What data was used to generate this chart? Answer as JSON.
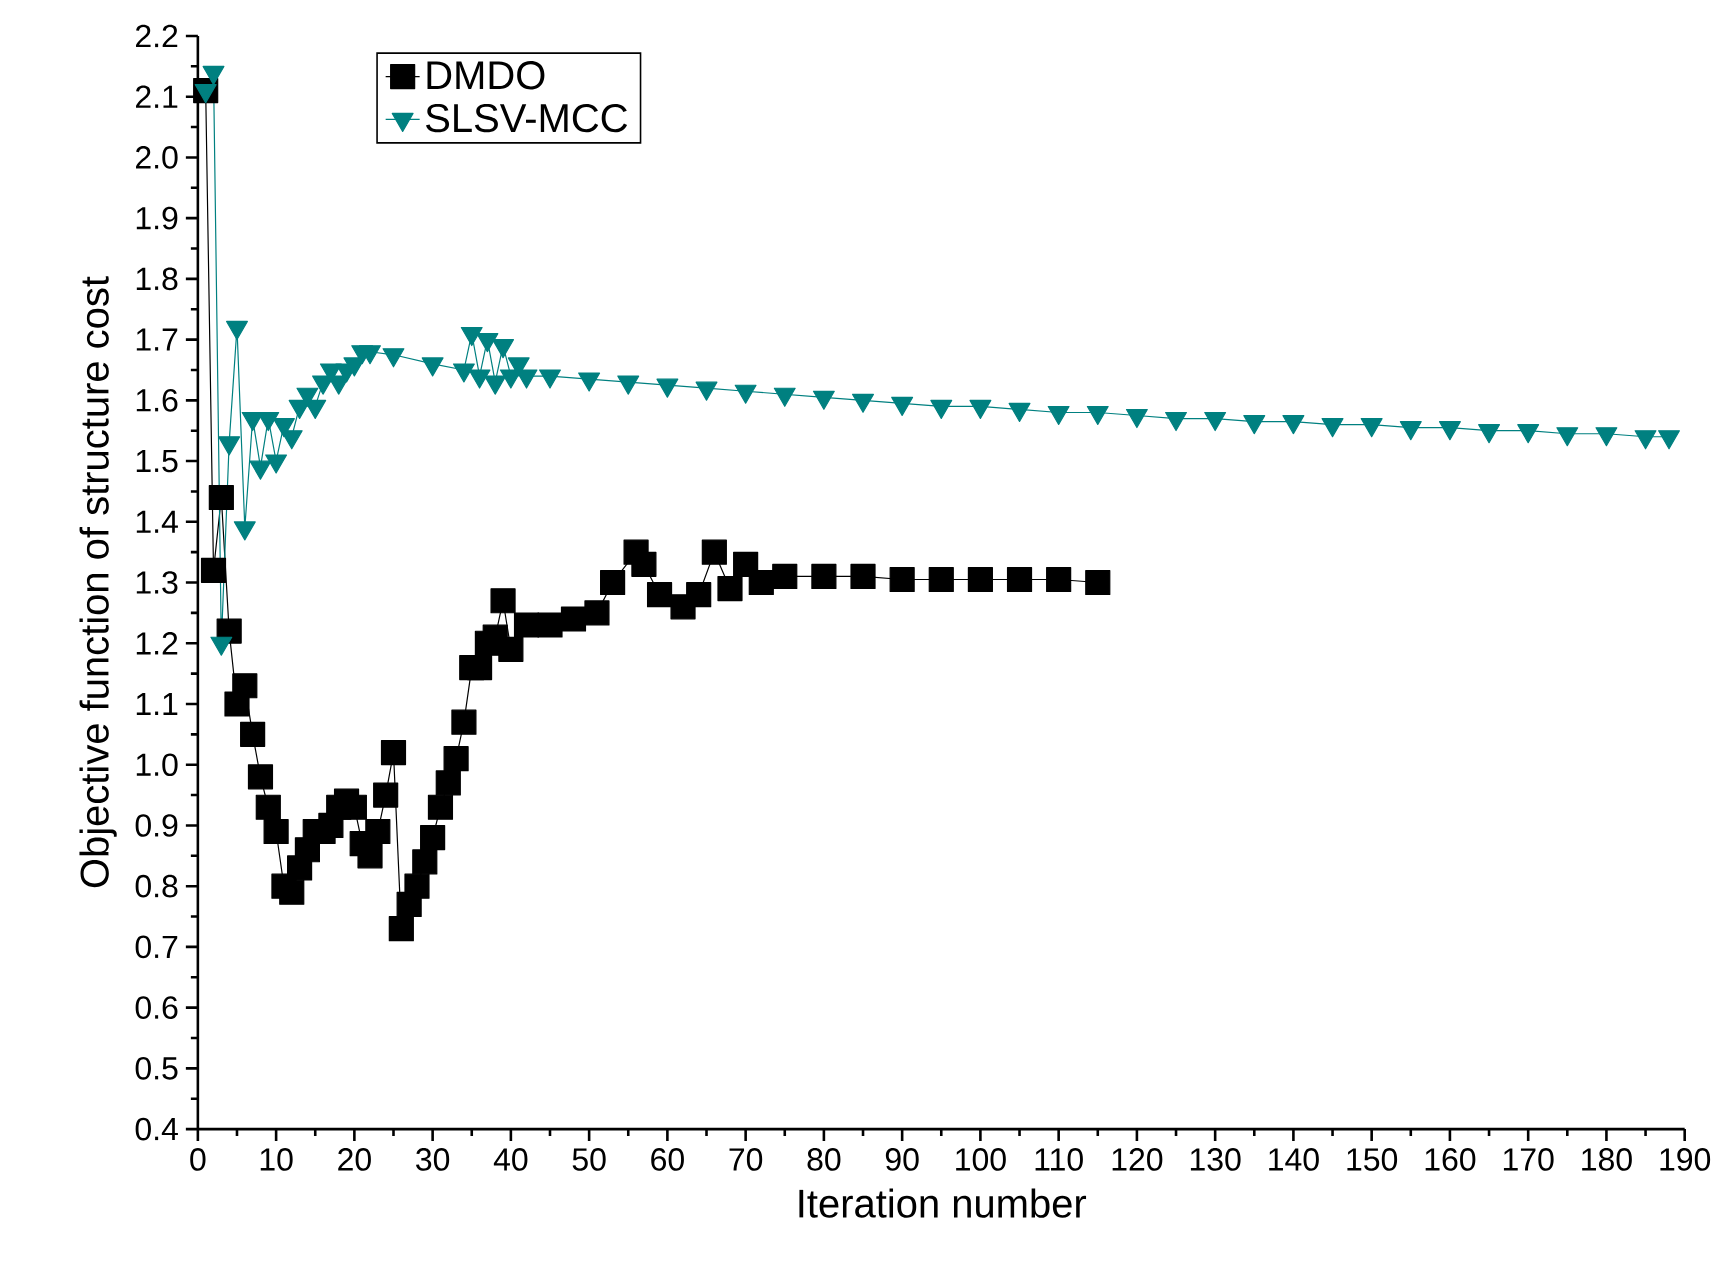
{
  "chart_data": {
    "type": "line",
    "xlabel": "Iteration number",
    "ylabel": "Objective function of structure cost",
    "xlim": [
      0,
      190
    ],
    "ylim": [
      0.4,
      2.2
    ],
    "xticks": [
      0,
      10,
      20,
      30,
      40,
      50,
      60,
      70,
      80,
      90,
      100,
      110,
      120,
      130,
      140,
      150,
      160,
      170,
      180,
      190
    ],
    "yticks": [
      0.4,
      0.5,
      0.6,
      0.7,
      0.8,
      0.9,
      {
        "value": 1,
        "label": "1.0"
      },
      1.1,
      1.2,
      1.3,
      1.4,
      1.5,
      1.6,
      1.7,
      1.8,
      1.9,
      {
        "value": 2,
        "label": "2.0"
      },
      2.1,
      2.2
    ],
    "grid": false,
    "legend": "top left",
    "series": [
      {
        "name": "DMDO",
        "color": "#000000",
        "marker": "square",
        "x": [
          1,
          2,
          3,
          4,
          5,
          6,
          7,
          8,
          9,
          10,
          11,
          12,
          13,
          14,
          15,
          16,
          17,
          18,
          19,
          20,
          21,
          22,
          23,
          24,
          25,
          26,
          27,
          28,
          29,
          30,
          31,
          32,
          33,
          34,
          35,
          36,
          37,
          38,
          39,
          40,
          42,
          45,
          48,
          51,
          53,
          56,
          57,
          59,
          62,
          64,
          66,
          68,
          70,
          72,
          75,
          80,
          85,
          90,
          95,
          100,
          105,
          110,
          115
        ],
        "values": [
          2.11,
          1.32,
          1.44,
          1.22,
          1.1,
          1.13,
          1.05,
          0.98,
          0.93,
          0.89,
          0.8,
          0.79,
          0.83,
          0.86,
          0.89,
          0.89,
          0.9,
          0.93,
          0.94,
          0.93,
          0.87,
          0.85,
          0.89,
          0.95,
          1.02,
          0.73,
          0.77,
          0.8,
          0.84,
          0.88,
          0.93,
          0.97,
          1.01,
          1.07,
          1.16,
          1.16,
          1.2,
          1.21,
          1.27,
          1.19,
          1.23,
          1.23,
          1.24,
          1.25,
          1.3,
          1.35,
          1.33,
          1.28,
          1.26,
          1.28,
          1.35,
          1.29,
          1.33,
          1.3,
          1.31,
          1.31,
          1.31,
          1.305,
          1.305,
          1.305,
          1.305,
          1.305,
          1.3
        ]
      },
      {
        "name": "SLSV-MCC",
        "color": "#008080",
        "marker": "triangle",
        "x": [
          1,
          2,
          3,
          4,
          5,
          6,
          7,
          8,
          9,
          10,
          11,
          12,
          13,
          14,
          15,
          16,
          17,
          18,
          19,
          20,
          21,
          22,
          25,
          30,
          34,
          35,
          36,
          37,
          38,
          39,
          40,
          41,
          42,
          45,
          50,
          55,
          60,
          65,
          70,
          75,
          80,
          85,
          90,
          95,
          100,
          105,
          110,
          115,
          120,
          125,
          130,
          135,
          140,
          145,
          150,
          155,
          160,
          165,
          170,
          175,
          180,
          185,
          188
        ],
        "values": [
          2.11,
          2.14,
          1.2,
          1.53,
          1.72,
          1.39,
          1.57,
          1.49,
          1.57,
          1.5,
          1.56,
          1.54,
          1.59,
          1.61,
          1.59,
          1.63,
          1.65,
          1.63,
          1.65,
          1.66,
          1.68,
          1.68,
          1.675,
          1.66,
          1.65,
          1.71,
          1.64,
          1.7,
          1.63,
          1.69,
          1.64,
          1.66,
          1.64,
          1.64,
          1.635,
          1.63,
          1.625,
          1.62,
          1.615,
          1.61,
          1.605,
          1.6,
          1.595,
          1.59,
          1.59,
          1.585,
          1.58,
          1.58,
          1.575,
          1.57,
          1.57,
          1.565,
          1.565,
          1.56,
          1.56,
          1.555,
          1.555,
          1.55,
          1.55,
          1.545,
          1.545,
          1.54,
          1.54
        ]
      }
    ]
  }
}
